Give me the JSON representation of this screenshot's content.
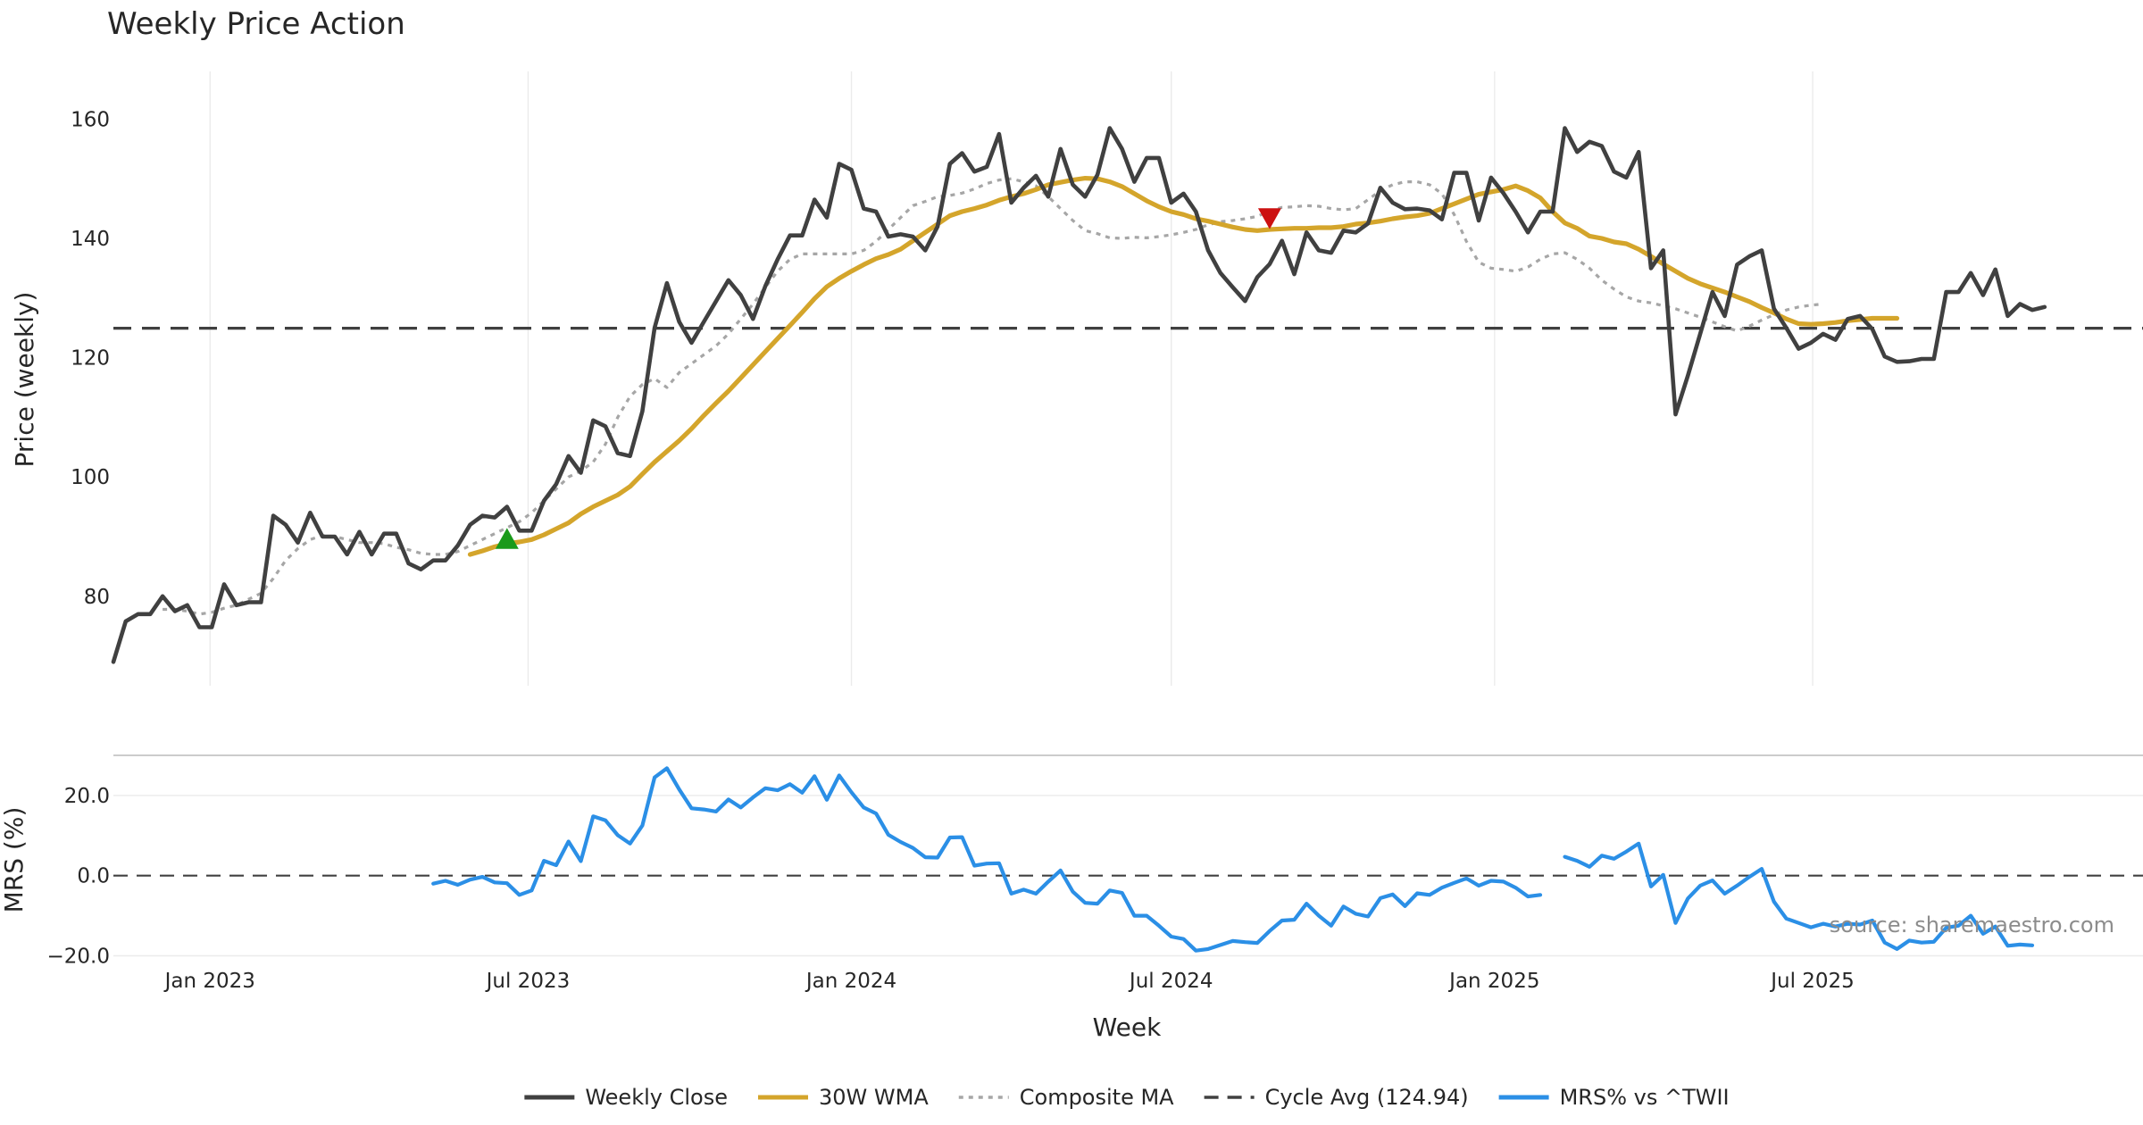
{
  "chart_data": {
    "type": "line",
    "title": "Weekly Price Action",
    "xlabel": "Week",
    "source": "source: sharemaestro.com",
    "x_start": "2022-11-07",
    "x_step_days": 7,
    "x_range": [
      "2022-11-07",
      "2026-01-05"
    ],
    "x_ticks": [
      {
        "date": "2023-01-01",
        "label": "Jan 2023"
      },
      {
        "date": "2023-07-01",
        "label": "Jul 2023"
      },
      {
        "date": "2024-01-01",
        "label": "Jan 2024"
      },
      {
        "date": "2024-07-01",
        "label": "Jul 2024"
      },
      {
        "date": "2025-01-01",
        "label": "Jan 2025"
      },
      {
        "date": "2025-07-01",
        "label": "Jul 2025"
      }
    ],
    "price_panel": {
      "ylabel": "Price (weekly)",
      "ylim": [
        65,
        168
      ],
      "y_ticks": [
        {
          "value": 80,
          "label": "80"
        },
        {
          "value": 100,
          "label": "100"
        },
        {
          "value": 120,
          "label": "120"
        },
        {
          "value": 140,
          "label": "140"
        },
        {
          "value": 160,
          "label": "160"
        }
      ],
      "series": [
        {
          "name": "Weekly Close",
          "color": "#404040",
          "style": "solid",
          "start_index": 0,
          "values": [
            69,
            75.8,
            77,
            77,
            80,
            77.5,
            78.5,
            74.8,
            74.8,
            82,
            78.5,
            79,
            79,
            93.5,
            92,
            89,
            94,
            90,
            90,
            87,
            90.8,
            87,
            90.5,
            90.5,
            85.5,
            84.5,
            86,
            86,
            88.5,
            92,
            93.5,
            93.2,
            95,
            91,
            91,
            96,
            98.8,
            103.5,
            100.7,
            109.5,
            108.5,
            104,
            103.5,
            111,
            125,
            132.5,
            126,
            122.5,
            126,
            129.5,
            133,
            130.5,
            126.5,
            132,
            136.5,
            140.5,
            140.5,
            146.5,
            143.5,
            152.5,
            151.5,
            145,
            144.5,
            140.3,
            140.7,
            140.3,
            138,
            142,
            152.5,
            154.3,
            151.2,
            152,
            157.5,
            146,
            148.5,
            150.5,
            147,
            155,
            149,
            147,
            150.7,
            158.5,
            155,
            149.5,
            153.5,
            153.5,
            146,
            147.5,
            144.5,
            138,
            134.2,
            131.8,
            129.5,
            133.5,
            135.7,
            139.6,
            134,
            141,
            138,
            137.6,
            141.3,
            141,
            142.5,
            148.5,
            146,
            144.9,
            145,
            144.7,
            143.2,
            151,
            151,
            143,
            150.2,
            147.6,
            144.5,
            141,
            144.5,
            144.5,
            158.5,
            154.5,
            156.2,
            155.5,
            151.2,
            150.2,
            154.5,
            135,
            138,
            110.5,
            117,
            124,
            131,
            127,
            135.6,
            137,
            138,
            128.2,
            125,
            121.5,
            122.5,
            124,
            123,
            126.5,
            127,
            124.8,
            120.2,
            119.3,
            119.4,
            119.8,
            119.8,
            131,
            131,
            134.2,
            130.5,
            134.8,
            127,
            129,
            128,
            128.5
          ]
        },
        {
          "name": "30W WMA",
          "color": "#d4a52b",
          "style": "solid",
          "start_index": 29,
          "values": [
            87,
            87.6,
            88.3,
            88.8,
            89.1,
            89.5,
            90.3,
            91.3,
            92.3,
            93.8,
            95,
            96,
            97,
            98.4,
            100.5,
            102.5,
            104.3,
            106.1,
            108.1,
            110.3,
            112.4,
            114.4,
            116.6,
            118.8,
            121,
            123.2,
            125.4,
            127.6,
            129.9,
            131.9,
            133.3,
            134.5,
            135.6,
            136.6,
            137.3,
            138.2,
            139.6,
            141,
            142.4,
            143.8,
            144.5,
            145,
            145.6,
            146.4,
            147,
            147.5,
            148.2,
            149,
            149.4,
            149.8,
            150.1,
            150,
            149.5,
            148.7,
            147.5,
            146.3,
            145.3,
            144.5,
            144,
            143.3,
            142.9,
            142.4,
            141.9,
            141.5,
            141.3,
            141.5,
            141.6,
            141.7,
            141.7,
            141.8,
            141.8,
            142,
            142.4,
            142.6,
            142.9,
            143.3,
            143.6,
            143.8,
            144.2,
            145,
            145.8,
            146.6,
            147.4,
            147.8,
            148.2,
            148.8,
            148,
            146.8,
            144.5,
            142.6,
            141.7,
            140.4,
            140,
            139.4,
            139.1,
            138.2,
            137,
            135.7,
            134.5,
            133.3,
            132.4,
            131.7,
            131,
            130.2,
            129.4,
            128.4,
            127.5,
            126.5,
            125.7,
            125.6,
            125.7,
            125.9,
            126.2,
            126.4,
            126.6,
            126.6,
            126.6
          ]
        },
        {
          "name": "Composite MA",
          "color": "#a6a6a6",
          "style": "dotted",
          "start_index": 4,
          "values": [
            77.8,
            77.8,
            77.5,
            77,
            77.3,
            78,
            78.5,
            79.5,
            80.5,
            83,
            86,
            88,
            89.5,
            90.2,
            90,
            89.5,
            89,
            89,
            88.8,
            88.2,
            87.8,
            87.2,
            87,
            87,
            87.5,
            88.5,
            89.5,
            90.5,
            91.5,
            92.5,
            94,
            96,
            98,
            100,
            101,
            102.5,
            105.5,
            110,
            113.5,
            115.5,
            116.5,
            115,
            117.5,
            119,
            120.5,
            122,
            124,
            126.5,
            129,
            131.8,
            134.5,
            136.5,
            137.4,
            137.4,
            137.4,
            137.4,
            137.4,
            138,
            139.5,
            141.5,
            143.5,
            145.5,
            146.2,
            147,
            147.2,
            147.6,
            148.3,
            149.2,
            149.8,
            150,
            149.5,
            148.8,
            147,
            145,
            143,
            141.3,
            140.8,
            140.1,
            140,
            140.2,
            140.1,
            140.3,
            140.6,
            141,
            141.5,
            142.3,
            142.8,
            143,
            143.3,
            143.7,
            144.6,
            145.2,
            145.3,
            145.5,
            145.4,
            145,
            144.8,
            145,
            146.5,
            148,
            149,
            149.5,
            149.5,
            149,
            147.5,
            144,
            139.5,
            136,
            135,
            134.8,
            134.5,
            135.2,
            136.5,
            137.4,
            137.6,
            136.5,
            135,
            133,
            131.5,
            130.2,
            129.5,
            129.2,
            128.7,
            128.2,
            127.5,
            126.8,
            126,
            125.2,
            124.5,
            125.3,
            126.3,
            127.2,
            128,
            128.5,
            128.8,
            129
          ]
        },
        {
          "name": "Cycle Avg (124.94)",
          "color": "#404040",
          "style": "dashed",
          "constant": 124.94
        }
      ],
      "markers": [
        {
          "type": "buy",
          "shape": "triangle-up",
          "index": 32,
          "value": 89.5,
          "color": "#1a9a1a"
        },
        {
          "type": "sell",
          "shape": "triangle-down",
          "index": 94,
          "value": 143.5,
          "color": "#cc1111"
        }
      ]
    },
    "mrs_panel": {
      "ylabel": "MRS (%)",
      "ylim": [
        -21,
        30
      ],
      "y_ticks": [
        {
          "value": 20,
          "label": "20.0"
        },
        {
          "value": 0,
          "label": "0.0"
        },
        {
          "value": -20,
          "label": "−20.0"
        }
      ],
      "zero_line": 0,
      "series": [
        {
          "name": "MRS% vs ^TWII",
          "color": "#2b8fe6",
          "style": "solid",
          "segments": [
            {
              "start_index": 26,
              "values": [
                -2,
                -1.3,
                -2.3,
                -1,
                -0.3,
                -1.7,
                -1.9,
                -4.8,
                -3.7,
                3.7,
                2.6,
                8.5,
                3.6,
                14.8,
                13.8,
                10.1,
                8,
                12.5,
                24.5,
                26.8,
                21.5,
                16.8,
                16.5,
                16,
                19,
                17,
                19.5,
                21.8,
                21.3,
                22.8,
                20.7,
                24.8,
                18.9,
                25,
                20.8,
                17,
                15.5,
                10.2,
                8.4,
                6.9,
                4.6,
                4.5,
                9.5,
                9.6,
                2.5,
                3,
                3.1,
                -4.5,
                -3.5,
                -4.5,
                -1.5,
                1.3,
                -4,
                -6.8,
                -7,
                -3.7,
                -4.3,
                -10,
                -10,
                -12.5,
                -15.2,
                -15.8,
                -18.7,
                -18.3,
                -17.3,
                -16.3,
                -16.6,
                -16.8,
                -13.8,
                -11.2,
                -11,
                -7,
                -10,
                -12.5,
                -7.7,
                -9.5,
                -10.2,
                -5.6,
                -4.7,
                -7.6,
                -4.4,
                -4.8,
                -3,
                -1.8,
                -0.7,
                -2.5,
                -1.3,
                -1.5,
                -3,
                -5.2,
                -4.8
              ]
            },
            {
              "start_index": 118,
              "values": [
                4.7,
                3.7,
                2.2,
                5,
                4.2,
                6,
                8,
                -2.7,
                0.2,
                -11.8,
                -5.7,
                -2.5,
                -1.2,
                -4.5,
                -2.5,
                -0.3,
                1.7,
                -6.5,
                -10.7,
                -11.8,
                -12.9,
                -12,
                -12.7,
                -12,
                -12.2,
                -11.2,
                -16.7,
                -18.3,
                -16.2,
                -16.7,
                -16.5,
                -13,
                -12.5,
                -10,
                -14.5,
                -12.7,
                -17.5,
                -17.2,
                -17.4
              ]
            }
          ]
        }
      ]
    },
    "legend": [
      {
        "label": "Weekly Close",
        "color": "#404040",
        "style": "solid"
      },
      {
        "label": "30W WMA",
        "color": "#d4a52b",
        "style": "solid"
      },
      {
        "label": "Composite MA",
        "color": "#a6a6a6",
        "style": "dotted"
      },
      {
        "label": "Cycle Avg (124.94)",
        "color": "#404040",
        "style": "dashed"
      },
      {
        "label": "MRS% vs ^TWII",
        "color": "#2b8fe6",
        "style": "solid"
      }
    ]
  }
}
